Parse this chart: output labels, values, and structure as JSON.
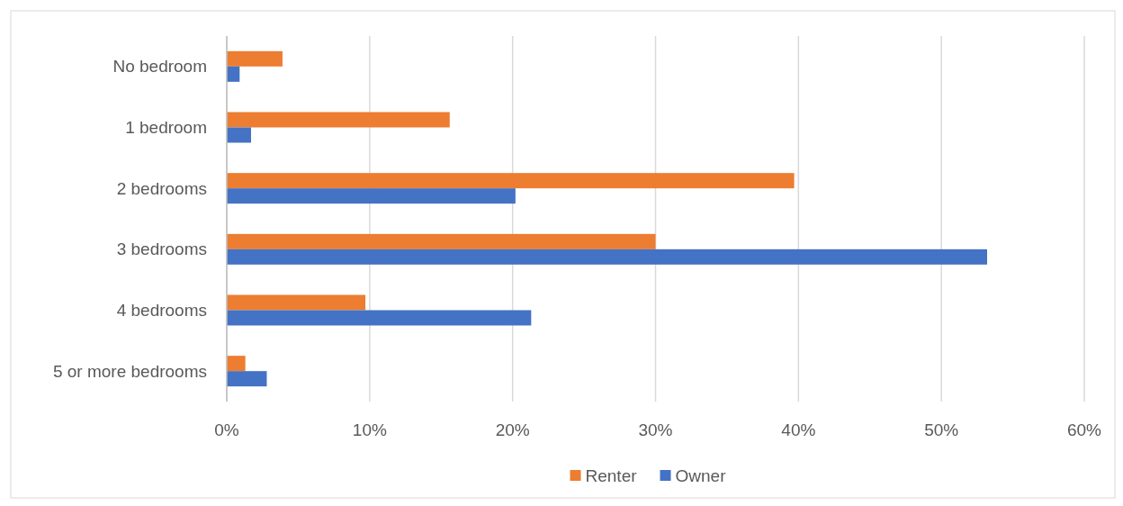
{
  "chart_data": {
    "type": "bar",
    "orientation": "horizontal",
    "categories": [
      "No bedroom",
      "1 bedroom",
      "2 bedrooms",
      "3 bedrooms",
      "4 bedrooms",
      "5 or more bedrooms"
    ],
    "series": [
      {
        "name": "Renter",
        "color": "#ed7d31",
        "values": [
          3.9,
          15.6,
          39.7,
          30.0,
          9.7,
          1.3
        ]
      },
      {
        "name": "Owner",
        "color": "#4472c4",
        "values": [
          0.9,
          1.7,
          20.2,
          53.2,
          21.3,
          2.8
        ]
      }
    ],
    "xlim": [
      0,
      60
    ],
    "xticks": [
      {
        "value": 0,
        "label": "0%"
      },
      {
        "value": 10,
        "label": "10%"
      },
      {
        "value": 20,
        "label": "20%"
      },
      {
        "value": 30,
        "label": "30%"
      },
      {
        "value": 40,
        "label": "40%"
      },
      {
        "value": 50,
        "label": "50%"
      },
      {
        "value": 60,
        "label": "60%"
      }
    ],
    "grid": "x",
    "legend": "bottom"
  }
}
